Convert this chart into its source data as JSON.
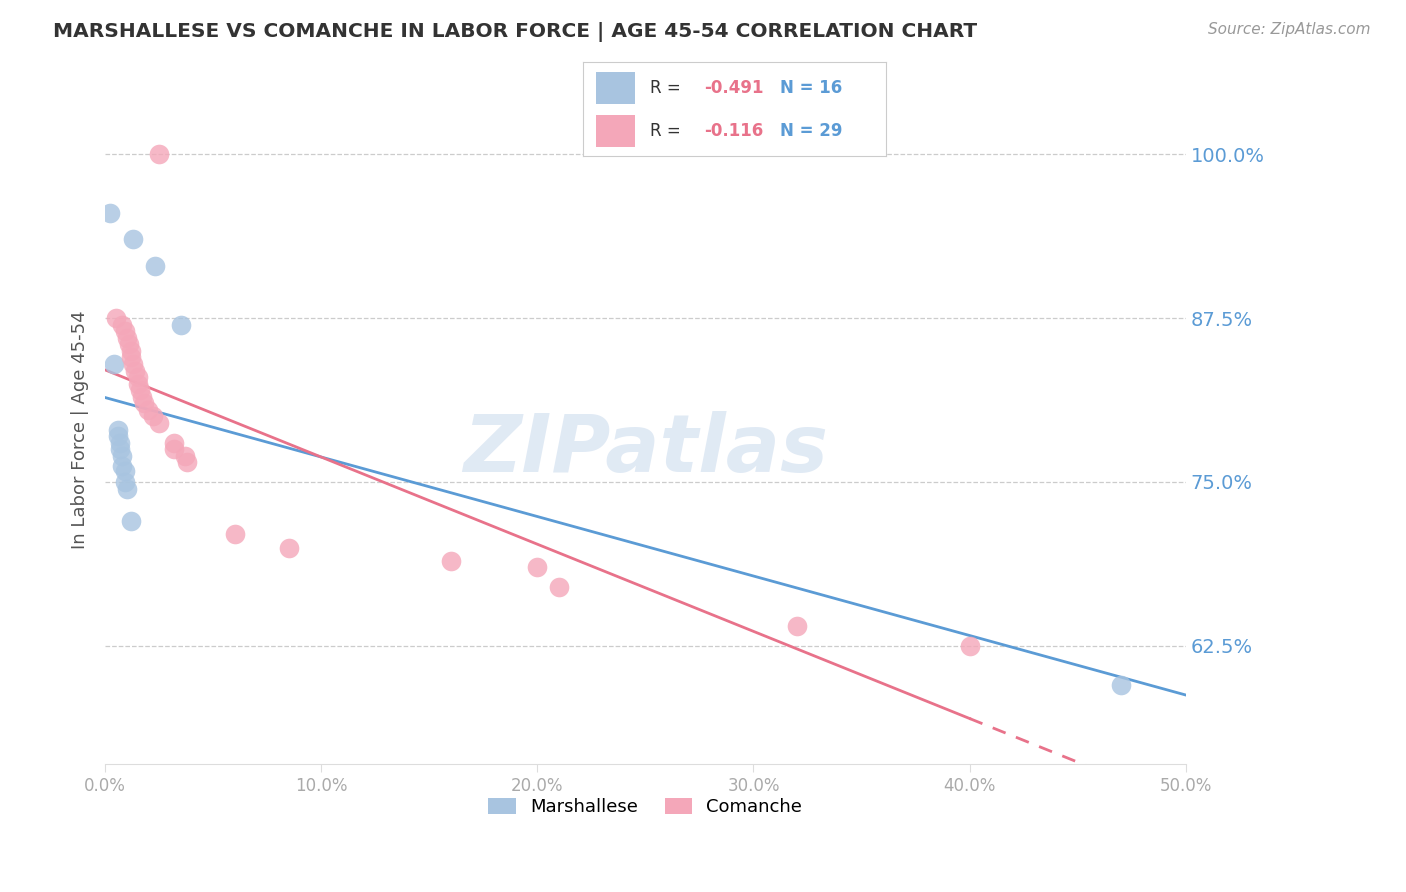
{
  "title": "MARSHALLESE VS COMANCHE IN LABOR FORCE | AGE 45-54 CORRELATION CHART",
  "source": "Source: ZipAtlas.com",
  "ylabel": "In Labor Force | Age 45-54",
  "ytick_labels": [
    "100.0%",
    "87.5%",
    "75.0%",
    "62.5%"
  ],
  "ytick_values": [
    1.0,
    0.875,
    0.75,
    0.625
  ],
  "xlim": [
    0.0,
    0.5
  ],
  "ylim": [
    0.535,
    1.045
  ],
  "watermark": "ZIPatlas",
  "marshallese_x": [
    0.002,
    0.013,
    0.023,
    0.035,
    0.004,
    0.006,
    0.006,
    0.007,
    0.007,
    0.008,
    0.008,
    0.009,
    0.009,
    0.01,
    0.012,
    0.47
  ],
  "marshallese_y": [
    0.955,
    0.935,
    0.915,
    0.87,
    0.84,
    0.79,
    0.785,
    0.78,
    0.775,
    0.77,
    0.762,
    0.758,
    0.75,
    0.745,
    0.72,
    0.595
  ],
  "comanche_x": [
    0.025,
    0.005,
    0.008,
    0.009,
    0.01,
    0.011,
    0.012,
    0.012,
    0.013,
    0.014,
    0.015,
    0.015,
    0.016,
    0.017,
    0.018,
    0.02,
    0.022,
    0.025,
    0.032,
    0.032,
    0.037,
    0.038,
    0.06,
    0.085,
    0.16,
    0.2,
    0.21,
    0.32,
    0.4
  ],
  "comanche_y": [
    1.0,
    0.875,
    0.87,
    0.865,
    0.86,
    0.855,
    0.85,
    0.845,
    0.84,
    0.835,
    0.83,
    0.825,
    0.82,
    0.815,
    0.81,
    0.805,
    0.8,
    0.795,
    0.78,
    0.775,
    0.77,
    0.765,
    0.71,
    0.7,
    0.69,
    0.685,
    0.67,
    0.64,
    0.625
  ],
  "blue_line_color": "#5b9bd5",
  "pink_line_color": "#e8728a",
  "dot_blue": "#a8c4e0",
  "dot_pink": "#f4a7b9",
  "background": "#ffffff",
  "grid_color": "#cccccc",
  "right_axis_color": "#5b9bd5",
  "legend_box_color": "#bbbbbb",
  "title_color": "#333333",
  "source_color": "#999999",
  "watermark_color": "#ccdcee",
  "xtick_color": "#aaaaaa"
}
